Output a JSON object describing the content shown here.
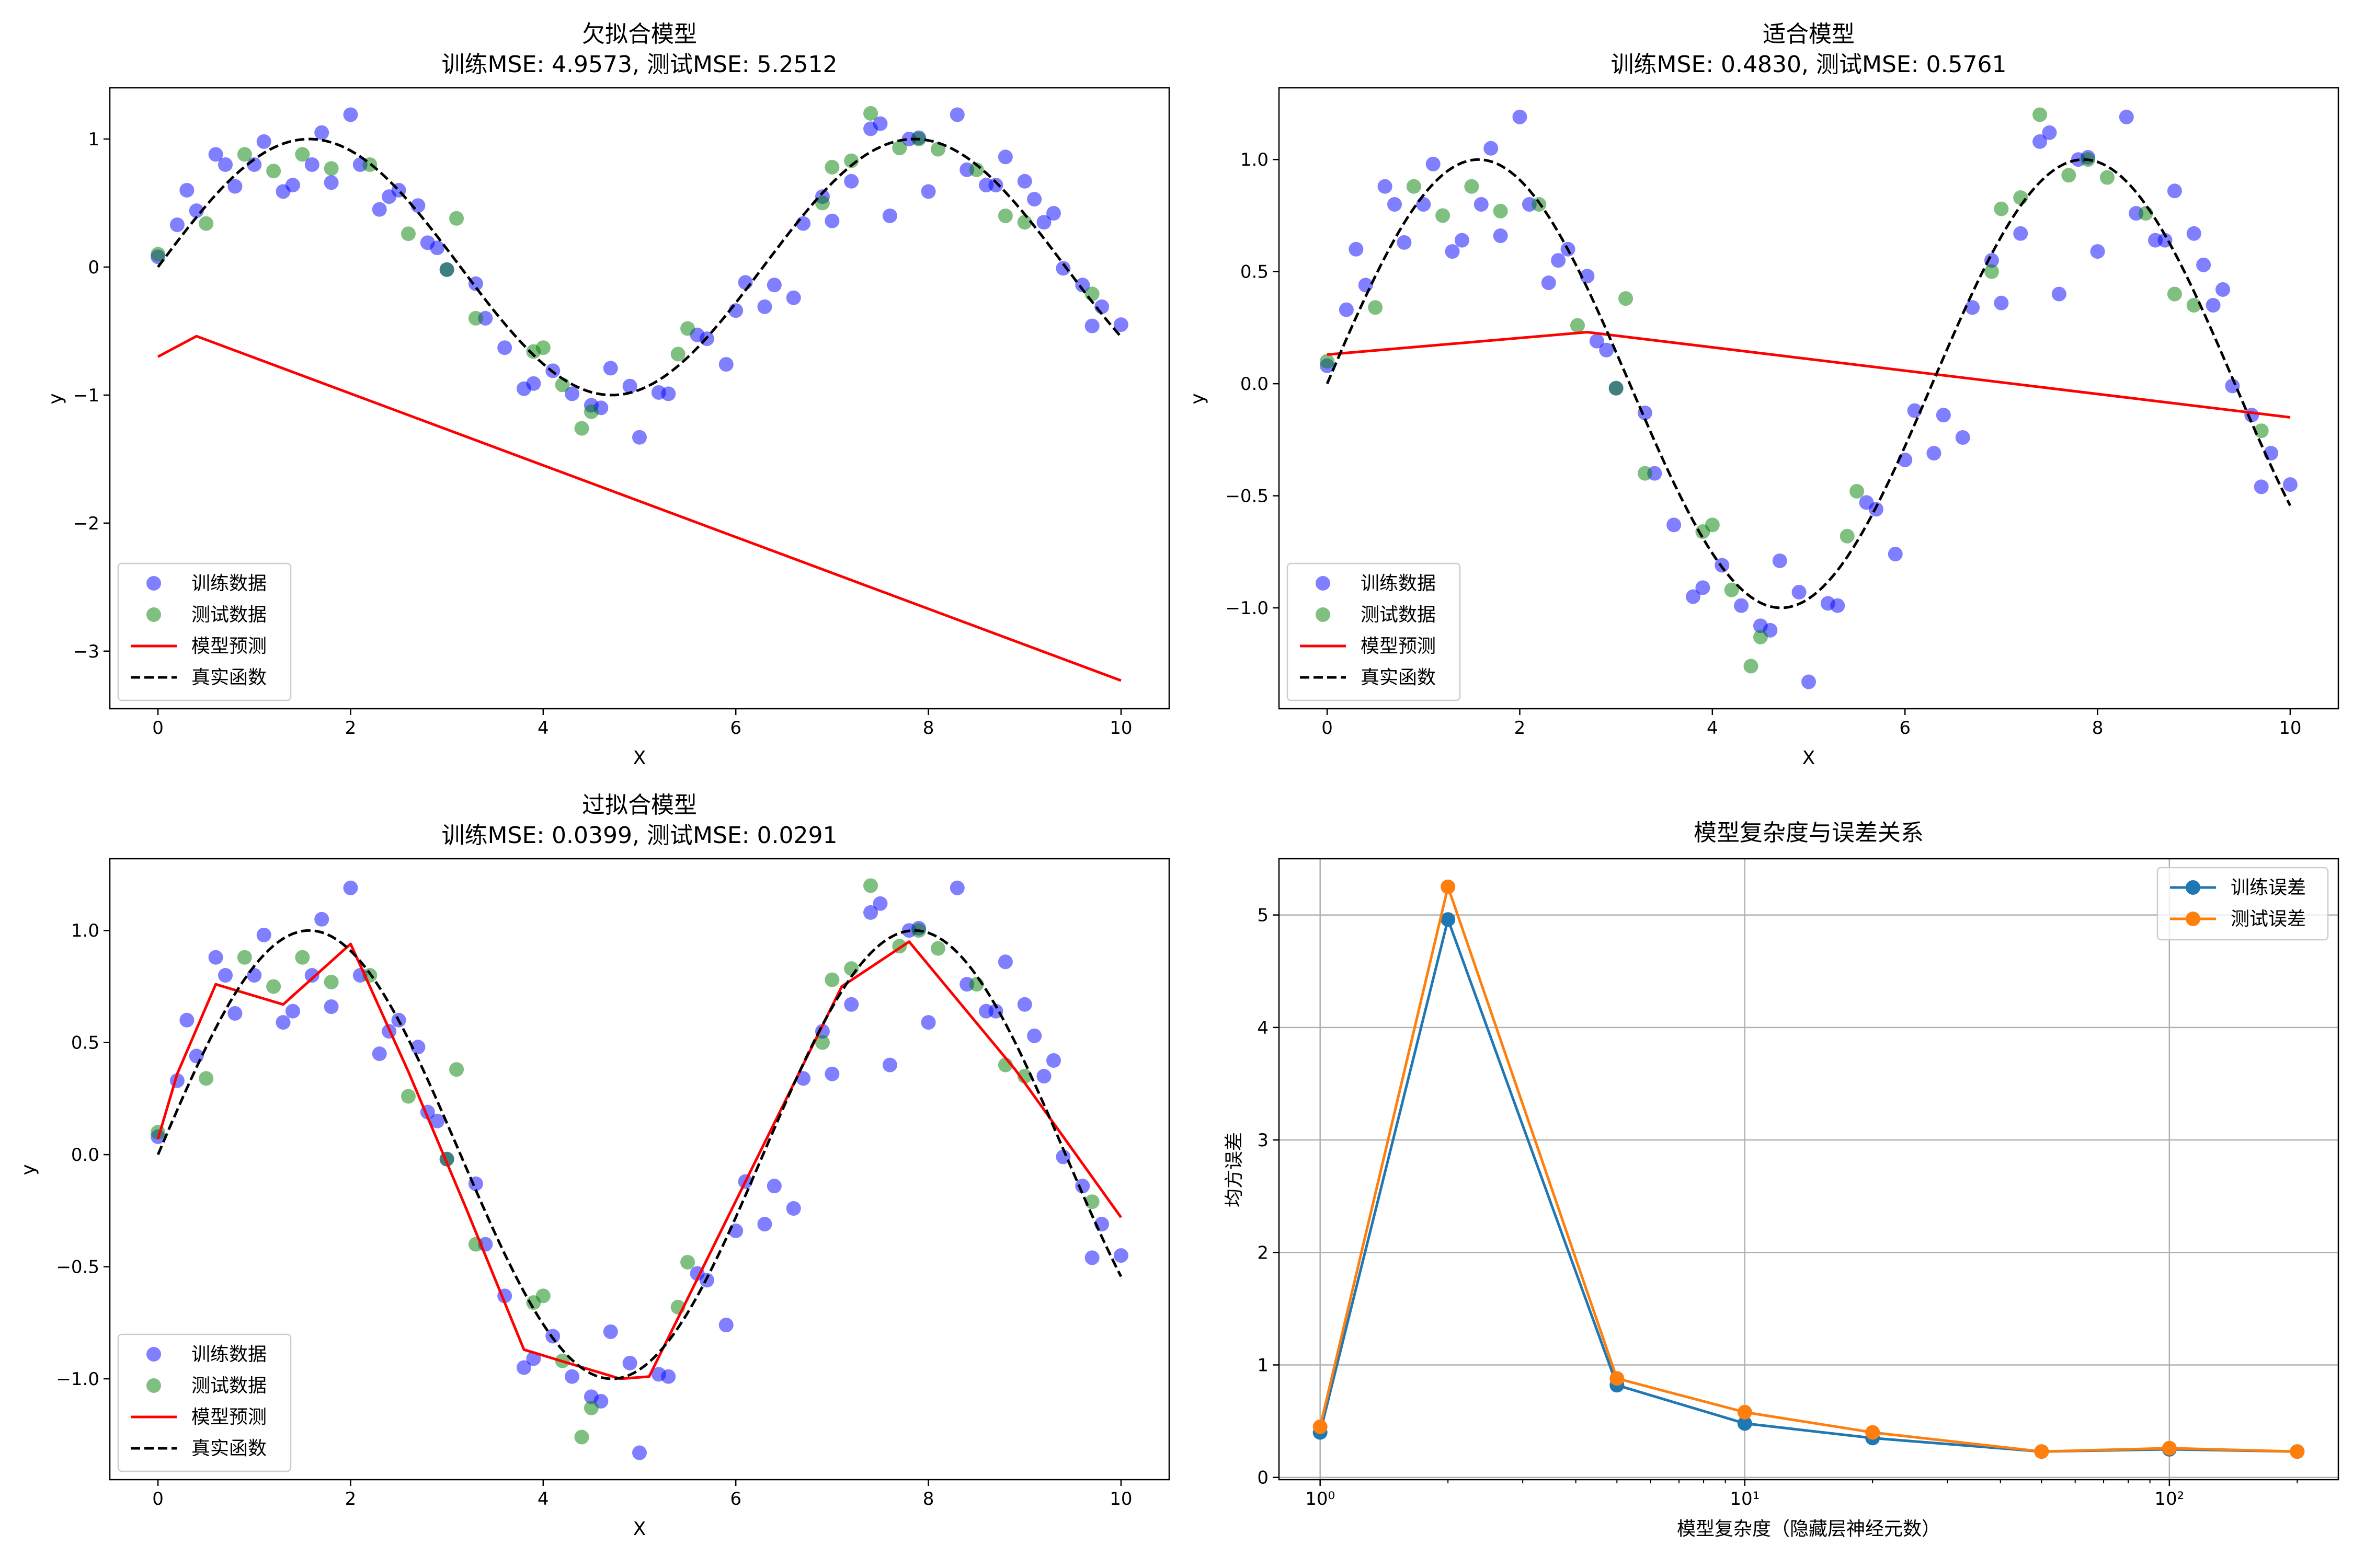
{
  "figure": {
    "panel_count": 4
  },
  "chart_data": [
    {
      "type": "scatter",
      "title": "欠拟合模型",
      "subtitle": "训练MSE: 4.9573, 测试MSE: 5.2512",
      "xlabel": "X",
      "ylabel": "y",
      "xlim": [
        -0.5,
        10.5
      ],
      "ylim": [
        -3.45,
        1.4
      ],
      "x_ticks": [
        0,
        2,
        4,
        6,
        8,
        10
      ],
      "y_ticks": [
        -3,
        -2,
        -1,
        0,
        1
      ],
      "x_tick_labels": [
        "0",
        "2",
        "4",
        "6",
        "8",
        "10"
      ],
      "y_tick_labels": [
        "−3",
        "−2",
        "−1",
        "0",
        "1"
      ],
      "grid": false,
      "legend_position": "lower-left",
      "colors": {
        "train": "#0000ff",
        "test": "#008000",
        "prediction": "#ff0000",
        "true": "#000000"
      },
      "legend": [
        {
          "label": "训练数据",
          "kind": "marker",
          "color": "#0000ff"
        },
        {
          "label": "测试数据",
          "kind": "marker",
          "color": "#008000"
        },
        {
          "label": "模型预测",
          "kind": "line",
          "color": "#ff0000"
        },
        {
          "label": "真实函数",
          "kind": "dashed",
          "color": "#000000"
        }
      ],
      "series": [
        {
          "name": "训练数据",
          "kind": "scatter",
          "color": "#0000ff",
          "x": [
            0.0,
            0.2,
            0.3,
            0.4,
            0.6,
            0.7,
            0.8,
            1.0,
            1.1,
            1.3,
            1.4,
            1.6,
            1.7,
            1.8,
            2.0,
            2.1,
            2.3,
            2.4,
            2.5,
            2.7,
            2.8,
            2.9,
            3.0,
            3.3,
            3.4,
            3.6,
            3.8,
            3.9,
            4.1,
            4.3,
            4.5,
            4.6,
            4.7,
            4.9,
            5.0,
            5.2,
            5.3,
            5.6,
            5.7,
            5.9,
            6.0,
            6.1,
            6.3,
            6.4,
            6.6,
            6.7,
            6.9,
            7.0,
            7.2,
            7.4,
            7.5,
            7.6,
            7.8,
            7.9,
            8.0,
            8.3,
            8.4,
            8.6,
            8.7,
            8.8,
            9.0,
            9.1,
            9.2,
            9.3,
            9.4,
            9.6,
            9.7,
            9.8,
            10.0
          ],
          "y": [
            0.08,
            0.33,
            0.6,
            0.44,
            0.88,
            0.8,
            0.63,
            0.8,
            0.98,
            0.59,
            0.64,
            0.8,
            1.05,
            0.66,
            1.19,
            0.8,
            0.45,
            0.55,
            0.6,
            0.48,
            0.19,
            0.15,
            -0.02,
            -0.13,
            -0.4,
            -0.63,
            -0.95,
            -0.91,
            -0.81,
            -0.99,
            -1.08,
            -1.1,
            -0.79,
            -0.93,
            -1.33,
            -0.98,
            -0.99,
            -0.53,
            -0.56,
            -0.76,
            -0.34,
            -0.12,
            -0.31,
            -0.14,
            -0.24,
            0.34,
            0.55,
            0.36,
            0.67,
            1.08,
            1.12,
            0.4,
            1.0,
            1.01,
            0.59,
            1.19,
            0.76,
            0.64,
            0.64,
            0.86,
            0.67,
            0.53,
            0.35,
            0.42,
            -0.01,
            -0.14,
            -0.46,
            -0.31,
            -0.45
          ]
        },
        {
          "name": "测试数据",
          "kind": "scatter",
          "color": "#008000",
          "x": [
            0.0,
            0.5,
            0.9,
            1.2,
            1.5,
            1.8,
            2.2,
            2.6,
            3.0,
            3.1,
            3.3,
            3.9,
            4.0,
            4.2,
            4.4,
            4.5,
            5.4,
            5.5,
            6.9,
            7.0,
            7.2,
            7.4,
            7.7,
            7.9,
            8.1,
            8.5,
            8.8,
            9.0,
            9.7
          ],
          "y": [
            0.1,
            0.34,
            0.88,
            0.75,
            0.88,
            0.77,
            0.8,
            0.26,
            -0.02,
            0.38,
            -0.4,
            -0.66,
            -0.63,
            -0.92,
            -1.26,
            -1.13,
            -0.68,
            -0.48,
            0.5,
            0.78,
            0.83,
            1.2,
            0.93,
            1.0,
            0.92,
            0.76,
            0.4,
            0.35,
            -0.21
          ]
        },
        {
          "name": "模型预测",
          "kind": "line",
          "color": "#ff0000",
          "x": [
            0.0,
            0.4,
            10.0
          ],
          "y": [
            -0.7,
            -0.54,
            -3.23
          ]
        },
        {
          "name": "真实函数",
          "kind": "dashed",
          "color": "#000000",
          "function": "sin(x)",
          "x_range": [
            0,
            10
          ]
        }
      ]
    },
    {
      "type": "scatter",
      "title": "适合模型",
      "subtitle": "训练MSE: 0.4830, 测试MSE: 0.5761",
      "xlabel": "X",
      "ylabel": "y",
      "xlim": [
        -0.5,
        10.5
      ],
      "ylim": [
        -1.45,
        1.32
      ],
      "x_ticks": [
        0,
        2,
        4,
        6,
        8,
        10
      ],
      "y_ticks": [
        -1.0,
        -0.5,
        0.0,
        0.5,
        1.0
      ],
      "x_tick_labels": [
        "0",
        "2",
        "4",
        "6",
        "8",
        "10"
      ],
      "y_tick_labels": [
        "−1.0",
        "−0.5",
        "0.0",
        "0.5",
        "1.0"
      ],
      "grid": false,
      "legend_position": "lower-left",
      "colors": {
        "train": "#0000ff",
        "test": "#008000",
        "prediction": "#ff0000",
        "true": "#000000"
      },
      "legend": [
        {
          "label": "训练数据",
          "kind": "marker",
          "color": "#0000ff"
        },
        {
          "label": "测试数据",
          "kind": "marker",
          "color": "#008000"
        },
        {
          "label": "模型预测",
          "kind": "line",
          "color": "#ff0000"
        },
        {
          "label": "真实函数",
          "kind": "dashed",
          "color": "#000000"
        }
      ],
      "series": [
        {
          "name": "训练数据",
          "kind": "scatter",
          "color": "#0000ff",
          "x": [
            0.0,
            0.2,
            0.3,
            0.4,
            0.6,
            0.7,
            0.8,
            1.0,
            1.1,
            1.3,
            1.4,
            1.6,
            1.7,
            1.8,
            2.0,
            2.1,
            2.3,
            2.4,
            2.5,
            2.7,
            2.8,
            2.9,
            3.0,
            3.3,
            3.4,
            3.6,
            3.8,
            3.9,
            4.1,
            4.3,
            4.5,
            4.6,
            4.7,
            4.9,
            5.0,
            5.2,
            5.3,
            5.6,
            5.7,
            5.9,
            6.0,
            6.1,
            6.3,
            6.4,
            6.6,
            6.7,
            6.9,
            7.0,
            7.2,
            7.4,
            7.5,
            7.6,
            7.8,
            7.9,
            8.0,
            8.3,
            8.4,
            8.6,
            8.7,
            8.8,
            9.0,
            9.1,
            9.2,
            9.3,
            9.4,
            9.6,
            9.7,
            9.8,
            10.0
          ],
          "y": [
            0.08,
            0.33,
            0.6,
            0.44,
            0.88,
            0.8,
            0.63,
            0.8,
            0.98,
            0.59,
            0.64,
            0.8,
            1.05,
            0.66,
            1.19,
            0.8,
            0.45,
            0.55,
            0.6,
            0.48,
            0.19,
            0.15,
            -0.02,
            -0.13,
            -0.4,
            -0.63,
            -0.95,
            -0.91,
            -0.81,
            -0.99,
            -1.08,
            -1.1,
            -0.79,
            -0.93,
            -1.33,
            -0.98,
            -0.99,
            -0.53,
            -0.56,
            -0.76,
            -0.34,
            -0.12,
            -0.31,
            -0.14,
            -0.24,
            0.34,
            0.55,
            0.36,
            0.67,
            1.08,
            1.12,
            0.4,
            1.0,
            1.01,
            0.59,
            1.19,
            0.76,
            0.64,
            0.64,
            0.86,
            0.67,
            0.53,
            0.35,
            0.42,
            -0.01,
            -0.14,
            -0.46,
            -0.31,
            -0.45
          ]
        },
        {
          "name": "测试数据",
          "kind": "scatter",
          "color": "#008000",
          "x": [
            0.0,
            0.5,
            0.9,
            1.2,
            1.5,
            1.8,
            2.2,
            2.6,
            3.0,
            3.1,
            3.3,
            3.9,
            4.0,
            4.2,
            4.4,
            4.5,
            5.4,
            5.5,
            6.9,
            7.0,
            7.2,
            7.4,
            7.7,
            7.9,
            8.1,
            8.5,
            8.8,
            9.0,
            9.7
          ],
          "y": [
            0.1,
            0.34,
            0.88,
            0.75,
            0.88,
            0.77,
            0.8,
            0.26,
            -0.02,
            0.38,
            -0.4,
            -0.66,
            -0.63,
            -0.92,
            -1.26,
            -1.13,
            -0.68,
            -0.48,
            0.5,
            0.78,
            0.83,
            1.2,
            0.93,
            1.0,
            0.92,
            0.76,
            0.4,
            0.35,
            -0.21
          ]
        },
        {
          "name": "模型预测",
          "kind": "line",
          "color": "#ff0000",
          "x": [
            0.0,
            2.7,
            10.0
          ],
          "y": [
            0.13,
            0.23,
            -0.15
          ]
        },
        {
          "name": "真实函数",
          "kind": "dashed",
          "color": "#000000",
          "function": "sin(x)",
          "x_range": [
            0,
            10
          ]
        }
      ]
    },
    {
      "type": "scatter",
      "title": "过拟合模型",
      "subtitle": "训练MSE: 0.0399, 测试MSE: 0.0291",
      "xlabel": "X",
      "ylabel": "y",
      "xlim": [
        -0.5,
        10.5
      ],
      "ylim": [
        -1.45,
        1.32
      ],
      "x_ticks": [
        0,
        2,
        4,
        6,
        8,
        10
      ],
      "y_ticks": [
        -1.0,
        -0.5,
        0.0,
        0.5,
        1.0
      ],
      "x_tick_labels": [
        "0",
        "2",
        "4",
        "6",
        "8",
        "10"
      ],
      "y_tick_labels": [
        "−1.0",
        "−0.5",
        "0.0",
        "0.5",
        "1.0"
      ],
      "grid": false,
      "legend_position": "lower-left",
      "colors": {
        "train": "#0000ff",
        "test": "#008000",
        "prediction": "#ff0000",
        "true": "#000000"
      },
      "legend": [
        {
          "label": "训练数据",
          "kind": "marker",
          "color": "#0000ff"
        },
        {
          "label": "测试数据",
          "kind": "marker",
          "color": "#008000"
        },
        {
          "label": "模型预测",
          "kind": "line",
          "color": "#ff0000"
        },
        {
          "label": "真实函数",
          "kind": "dashed",
          "color": "#000000"
        }
      ],
      "series": [
        {
          "name": "训练数据",
          "kind": "scatter",
          "color": "#0000ff",
          "x": [
            0.0,
            0.2,
            0.3,
            0.4,
            0.6,
            0.7,
            0.8,
            1.0,
            1.1,
            1.3,
            1.4,
            1.6,
            1.7,
            1.8,
            2.0,
            2.1,
            2.3,
            2.4,
            2.5,
            2.7,
            2.8,
            2.9,
            3.0,
            3.3,
            3.4,
            3.6,
            3.8,
            3.9,
            4.1,
            4.3,
            4.5,
            4.6,
            4.7,
            4.9,
            5.0,
            5.2,
            5.3,
            5.6,
            5.7,
            5.9,
            6.0,
            6.1,
            6.3,
            6.4,
            6.6,
            6.7,
            6.9,
            7.0,
            7.2,
            7.4,
            7.5,
            7.6,
            7.8,
            7.9,
            8.0,
            8.3,
            8.4,
            8.6,
            8.7,
            8.8,
            9.0,
            9.1,
            9.2,
            9.3,
            9.4,
            9.6,
            9.7,
            9.8,
            10.0
          ],
          "y": [
            0.08,
            0.33,
            0.6,
            0.44,
            0.88,
            0.8,
            0.63,
            0.8,
            0.98,
            0.59,
            0.64,
            0.8,
            1.05,
            0.66,
            1.19,
            0.8,
            0.45,
            0.55,
            0.6,
            0.48,
            0.19,
            0.15,
            -0.02,
            -0.13,
            -0.4,
            -0.63,
            -0.95,
            -0.91,
            -0.81,
            -0.99,
            -1.08,
            -1.1,
            -0.79,
            -0.93,
            -1.33,
            -0.98,
            -0.99,
            -0.53,
            -0.56,
            -0.76,
            -0.34,
            -0.12,
            -0.31,
            -0.14,
            -0.24,
            0.34,
            0.55,
            0.36,
            0.67,
            1.08,
            1.12,
            0.4,
            1.0,
            1.01,
            0.59,
            1.19,
            0.76,
            0.64,
            0.64,
            0.86,
            0.67,
            0.53,
            0.35,
            0.42,
            -0.01,
            -0.14,
            -0.46,
            -0.31,
            -0.45
          ]
        },
        {
          "name": "测试数据",
          "kind": "scatter",
          "color": "#008000",
          "x": [
            0.0,
            0.5,
            0.9,
            1.2,
            1.5,
            1.8,
            2.2,
            2.6,
            3.0,
            3.1,
            3.3,
            3.9,
            4.0,
            4.2,
            4.4,
            4.5,
            5.4,
            5.5,
            6.9,
            7.0,
            7.2,
            7.4,
            7.7,
            7.9,
            8.1,
            8.5,
            8.8,
            9.0,
            9.7
          ],
          "y": [
            0.1,
            0.34,
            0.88,
            0.75,
            0.88,
            0.77,
            0.8,
            0.26,
            -0.02,
            0.38,
            -0.4,
            -0.66,
            -0.63,
            -0.92,
            -1.26,
            -1.13,
            -0.68,
            -0.48,
            0.5,
            0.78,
            0.83,
            1.2,
            0.93,
            1.0,
            0.92,
            0.76,
            0.4,
            0.35,
            -0.21
          ]
        },
        {
          "name": "模型预测",
          "kind": "line",
          "color": "#ff0000",
          "x": [
            0.0,
            0.2,
            0.6,
            1.3,
            2.0,
            2.6,
            3.2,
            3.8,
            4.8,
            5.1,
            7.1,
            7.8,
            8.9,
            10.0
          ],
          "y": [
            0.07,
            0.36,
            0.76,
            0.67,
            0.94,
            0.37,
            -0.24,
            -0.87,
            -1.0,
            -0.99,
            0.75,
            0.95,
            0.38,
            -0.28
          ]
        },
        {
          "name": "真实函数",
          "kind": "dashed",
          "color": "#000000",
          "function": "sin(x)",
          "x_range": [
            0,
            10
          ]
        }
      ]
    },
    {
      "type": "line",
      "title": "模型复杂度与误差关系",
      "xlabel": "模型复杂度（隐藏层神经元数）",
      "ylabel": "均方误差",
      "xscale": "log",
      "xlim": [
        0.8,
        250
      ],
      "ylim": [
        -0.02,
        5.5
      ],
      "x_ticks": [
        1,
        10,
        100
      ],
      "x_tick_labels": [
        "10⁰",
        "10¹",
        "10²"
      ],
      "y_ticks": [
        0,
        1,
        2,
        3,
        4,
        5
      ],
      "y_tick_labels": [
        "0",
        "1",
        "2",
        "3",
        "4",
        "5"
      ],
      "grid": true,
      "legend_position": "top-right",
      "colors": {
        "train": "#1f77b4",
        "test": "#ff7f0e"
      },
      "legend": [
        {
          "label": "训练误差",
          "kind": "line-marker",
          "color": "#1f77b4"
        },
        {
          "label": "测试误差",
          "kind": "line-marker",
          "color": "#ff7f0e"
        }
      ],
      "x": [
        1,
        2,
        5,
        10,
        20,
        50,
        100,
        200
      ],
      "series": [
        {
          "name": "训练误差",
          "kind": "line-marker",
          "color": "#1f77b4",
          "x": [
            1,
            2,
            5,
            10,
            20,
            50,
            100,
            200
          ],
          "y": [
            0.4,
            4.96,
            0.82,
            0.48,
            0.35,
            0.23,
            0.25,
            0.23
          ]
        },
        {
          "name": "测试误差",
          "kind": "line-marker",
          "color": "#ff7f0e",
          "x": [
            1,
            2,
            5,
            10,
            20,
            50,
            100,
            200
          ],
          "y": [
            0.45,
            5.25,
            0.88,
            0.58,
            0.4,
            0.23,
            0.26,
            0.23
          ]
        }
      ]
    }
  ]
}
